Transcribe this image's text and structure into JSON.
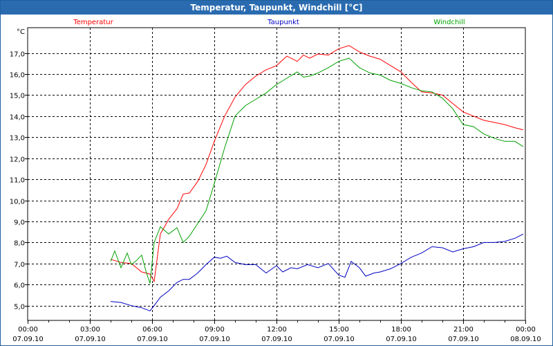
{
  "window": {
    "title": "Temperatur, Taupunkt, Windchill [°C]"
  },
  "chart_data": {
    "type": "line",
    "title": "Temperatur, Taupunkt, Windchill [°C]",
    "ylabel": "°C",
    "xlabel": "",
    "ylim": [
      4.3,
      18.2
    ],
    "xlim": [
      0,
      24
    ],
    "grid": true,
    "y_ticks": [
      {
        "value": 5,
        "label": "5,0"
      },
      {
        "value": 6,
        "label": "6,0"
      },
      {
        "value": 7,
        "label": "7,0"
      },
      {
        "value": 8,
        "label": "8,0"
      },
      {
        "value": 9,
        "label": "9,0"
      },
      {
        "value": 10,
        "label": "10,0"
      },
      {
        "value": 11,
        "label": "11,0"
      },
      {
        "value": 12,
        "label": "12,0"
      },
      {
        "value": 13,
        "label": "13,0"
      },
      {
        "value": 14,
        "label": "14,0"
      },
      {
        "value": 15,
        "label": "15,0"
      },
      {
        "value": 16,
        "label": "16,0"
      },
      {
        "value": 17,
        "label": "17,0"
      }
    ],
    "x_ticks": [
      {
        "value": 0,
        "time": "00:00",
        "date": "07.09.10"
      },
      {
        "value": 3,
        "time": "03:00",
        "date": "07.09.10"
      },
      {
        "value": 6,
        "time": "06:00",
        "date": "07.09.10"
      },
      {
        "value": 9,
        "time": "09:00",
        "date": "07.09.10"
      },
      {
        "value": 12,
        "time": "12:00",
        "date": "07.09.10"
      },
      {
        "value": 15,
        "time": "15:00",
        "date": "07.09.10"
      },
      {
        "value": 18,
        "time": "18:00",
        "date": "07.09.10"
      },
      {
        "value": 21,
        "time": "21:00",
        "date": "07.09.10"
      },
      {
        "value": 24,
        "time": "00:00",
        "date": "08.09.10"
      }
    ],
    "series": [
      {
        "name": "Temperatur",
        "color": "#ff0000",
        "legend_position": "top-left",
        "x": [
          4.0,
          4.5,
          5.0,
          5.5,
          5.9,
          6.1,
          6.4,
          6.8,
          7.2,
          7.5,
          7.8,
          8.2,
          8.6,
          9.0,
          9.5,
          10.0,
          10.5,
          11.0,
          11.5,
          12.0,
          12.5,
          13.0,
          13.3,
          13.6,
          14.0,
          14.5,
          15.0,
          15.5,
          16.0,
          16.5,
          17.0,
          17.5,
          18.0,
          18.5,
          19.0,
          19.5,
          20.0,
          20.5,
          21.0,
          21.5,
          22.0,
          22.5,
          23.0,
          23.5,
          23.9
        ],
        "values": [
          7.2,
          7.05,
          7.0,
          6.6,
          6.5,
          6.15,
          8.4,
          9.1,
          9.6,
          10.3,
          10.35,
          10.9,
          11.7,
          12.8,
          14.0,
          14.9,
          15.5,
          15.9,
          16.2,
          16.4,
          16.85,
          16.6,
          16.9,
          16.75,
          16.95,
          16.9,
          17.2,
          17.35,
          17.05,
          16.85,
          16.7,
          16.4,
          16.1,
          15.6,
          15.15,
          15.1,
          15.0,
          14.6,
          14.2,
          14.0,
          13.8,
          13.7,
          13.6,
          13.45,
          13.35
        ]
      },
      {
        "name": "Taupunkt",
        "color": "#0000c0",
        "legend_position": "top-center",
        "x": [
          4.0,
          4.5,
          5.0,
          5.5,
          5.9,
          6.1,
          6.4,
          6.8,
          7.2,
          7.5,
          7.8,
          8.2,
          8.6,
          9.0,
          9.3,
          9.6,
          10.0,
          10.5,
          11.0,
          11.5,
          12.0,
          12.3,
          12.7,
          13.0,
          13.5,
          14.0,
          14.5,
          15.0,
          15.3,
          15.6,
          16.0,
          16.3,
          16.7,
          17.0,
          17.5,
          18.0,
          18.5,
          19.0,
          19.5,
          20.0,
          20.5,
          21.0,
          21.5,
          22.0,
          22.5,
          23.0,
          23.5,
          23.9
        ],
        "values": [
          5.2,
          5.15,
          5.0,
          4.9,
          4.75,
          5.0,
          5.4,
          5.7,
          6.1,
          6.25,
          6.25,
          6.55,
          6.95,
          7.3,
          7.25,
          7.35,
          7.05,
          6.95,
          6.95,
          6.55,
          6.9,
          6.6,
          6.8,
          6.75,
          6.95,
          6.8,
          7.0,
          6.45,
          6.35,
          7.1,
          6.8,
          6.4,
          6.55,
          6.6,
          6.75,
          7.0,
          7.3,
          7.5,
          7.8,
          7.75,
          7.55,
          7.7,
          7.8,
          8.0,
          8.0,
          8.05,
          8.2,
          8.4
        ]
      },
      {
        "name": "Windchill",
        "color": "#00a000",
        "legend_position": "top-right",
        "x": [
          4.0,
          4.2,
          4.5,
          4.8,
          5.0,
          5.2,
          5.5,
          5.7,
          5.9,
          6.1,
          6.4,
          6.8,
          7.2,
          7.5,
          7.8,
          8.2,
          8.6,
          9.0,
          9.5,
          10.0,
          10.5,
          11.0,
          11.5,
          12.0,
          12.5,
          13.0,
          13.3,
          13.6,
          14.0,
          14.5,
          15.0,
          15.5,
          16.0,
          16.5,
          17.0,
          17.5,
          18.0,
          18.5,
          19.0,
          19.5,
          20.0,
          20.5,
          21.0,
          21.5,
          22.0,
          22.5,
          23.0,
          23.5,
          23.9
        ],
        "values": [
          7.1,
          7.6,
          6.8,
          7.5,
          6.95,
          7.1,
          7.4,
          6.65,
          6.05,
          8.0,
          8.75,
          8.4,
          8.7,
          8.0,
          8.3,
          8.9,
          9.5,
          10.8,
          12.5,
          14.0,
          14.5,
          14.8,
          15.1,
          15.5,
          15.8,
          16.1,
          15.85,
          15.9,
          16.05,
          16.3,
          16.6,
          16.75,
          16.3,
          16.05,
          15.95,
          15.7,
          15.55,
          15.35,
          15.2,
          15.15,
          14.85,
          14.35,
          13.6,
          13.5,
          13.15,
          12.95,
          12.8,
          12.8,
          12.55
        ]
      }
    ]
  }
}
